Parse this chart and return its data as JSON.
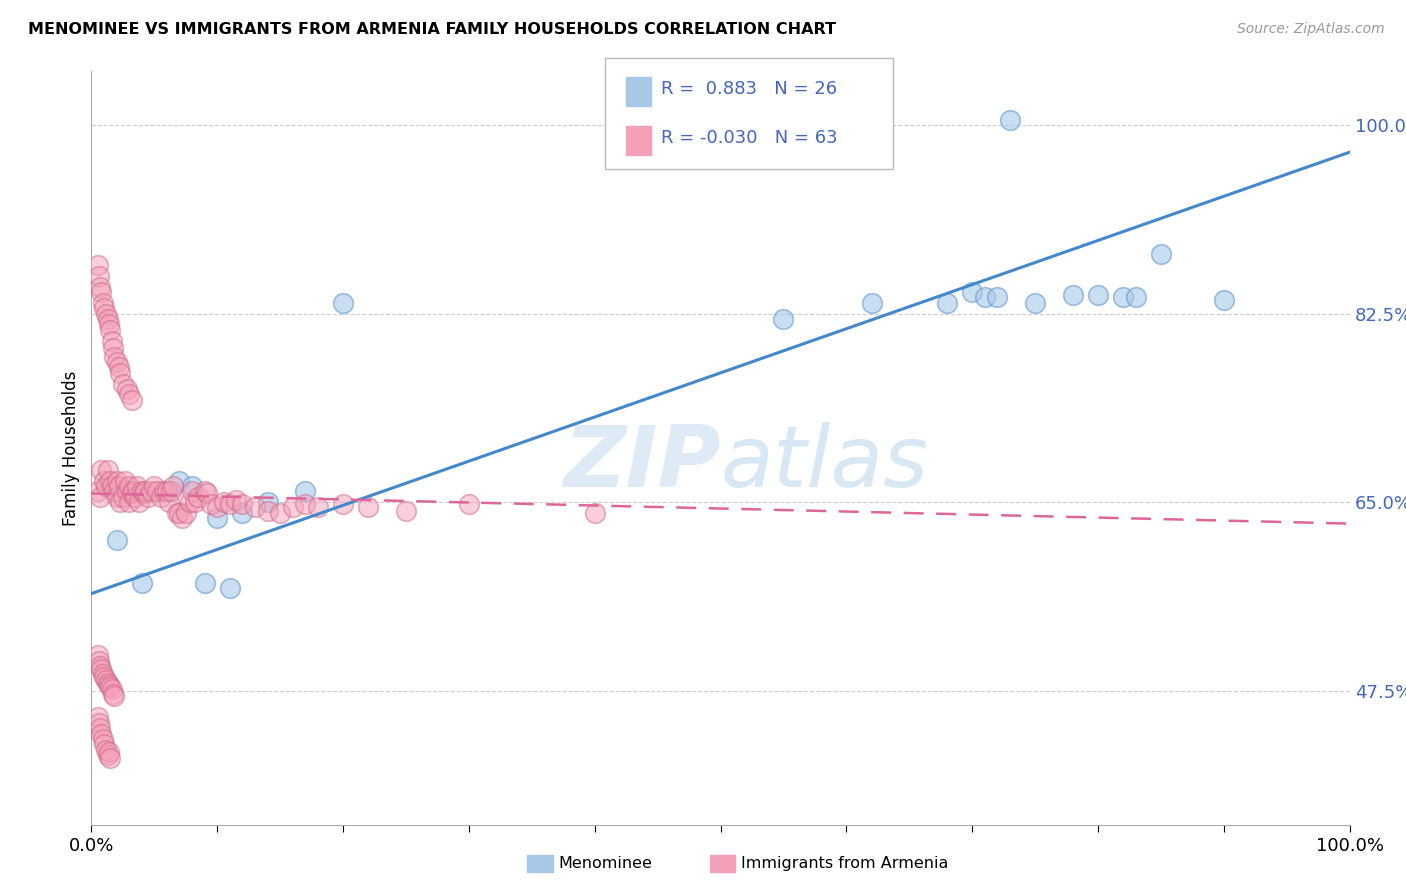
{
  "title": "MENOMINEE VS IMMIGRANTS FROM ARMENIA FAMILY HOUSEHOLDS CORRELATION CHART",
  "source": "Source: ZipAtlas.com",
  "ylabel": "Family Households",
  "xlim": [
    0.0,
    1.0
  ],
  "ylim": [
    0.35,
    1.05
  ],
  "yticks": [
    0.475,
    0.65,
    0.825,
    1.0
  ],
  "ytick_labels": [
    "47.5%",
    "65.0%",
    "82.5%",
    "100.0%"
  ],
  "xticks": [
    0.0,
    0.1,
    0.2,
    0.3,
    0.4,
    0.5,
    0.6,
    0.7,
    0.8,
    0.9,
    1.0
  ],
  "blue_color": "#a8c8e8",
  "blue_edge_color": "#6699cc",
  "pink_color": "#f4a0b8",
  "pink_edge_color": "#cc6688",
  "blue_line_color": "#4488cc",
  "pink_line_color": "#dd6699",
  "legend_text_color": "#4466bb",
  "R_blue": 0.883,
  "N_blue": 26,
  "R_pink": -0.03,
  "N_pink": 63,
  "blue_scatter_x": [
    0.02,
    0.04,
    0.06,
    0.07,
    0.08,
    0.09,
    0.1,
    0.11,
    0.12,
    0.14,
    0.17,
    0.2,
    0.55,
    0.62,
    0.68,
    0.7,
    0.71,
    0.72,
    0.73,
    0.75,
    0.78,
    0.8,
    0.82,
    0.83,
    0.85,
    0.9
  ],
  "blue_scatter_y": [
    0.615,
    0.575,
    0.66,
    0.67,
    0.665,
    0.575,
    0.635,
    0.57,
    0.64,
    0.65,
    0.66,
    0.835,
    0.82,
    0.835,
    0.835,
    0.845,
    0.84,
    0.84,
    1.005,
    0.835,
    0.842,
    0.842,
    0.84,
    0.84,
    0.88,
    0.838
  ],
  "pink_scatter_x": [
    0.005,
    0.007,
    0.008,
    0.01,
    0.012,
    0.013,
    0.015,
    0.016,
    0.018,
    0.02,
    0.02,
    0.022,
    0.023,
    0.025,
    0.027,
    0.028,
    0.03,
    0.03,
    0.032,
    0.033,
    0.035,
    0.036,
    0.038,
    0.04,
    0.042,
    0.043,
    0.045,
    0.047,
    0.05,
    0.052,
    0.055,
    0.058,
    0.06,
    0.062,
    0.063,
    0.065,
    0.068,
    0.07,
    0.072,
    0.075,
    0.078,
    0.08,
    0.082,
    0.085,
    0.09,
    0.092,
    0.095,
    0.1,
    0.105,
    0.11,
    0.115,
    0.12,
    0.13,
    0.14,
    0.15,
    0.16,
    0.17,
    0.18,
    0.2,
    0.22,
    0.25,
    0.3,
    0.4
  ],
  "pink_scatter_y": [
    0.66,
    0.655,
    0.68,
    0.67,
    0.665,
    0.68,
    0.67,
    0.665,
    0.66,
    0.67,
    0.655,
    0.665,
    0.65,
    0.655,
    0.67,
    0.66,
    0.665,
    0.65,
    0.658,
    0.66,
    0.655,
    0.665,
    0.65,
    0.66,
    0.658,
    0.66,
    0.655,
    0.66,
    0.665,
    0.66,
    0.655,
    0.66,
    0.66,
    0.65,
    0.66,
    0.665,
    0.64,
    0.64,
    0.635,
    0.64,
    0.65,
    0.66,
    0.65,
    0.655,
    0.66,
    0.658,
    0.648,
    0.645,
    0.65,
    0.648,
    0.652,
    0.648,
    0.645,
    0.642,
    0.64,
    0.645,
    0.648,
    0.645,
    0.648,
    0.645,
    0.642,
    0.648,
    0.64
  ],
  "pink_extra_x": [
    0.005,
    0.006,
    0.007,
    0.008,
    0.009,
    0.01,
    0.012,
    0.013,
    0.014,
    0.015,
    0.016,
    0.017,
    0.018,
    0.02,
    0.022,
    0.023,
    0.025,
    0.028,
    0.03,
    0.032,
    0.005,
    0.006,
    0.007,
    0.008,
    0.009,
    0.01,
    0.012,
    0.013,
    0.014,
    0.015,
    0.005,
    0.006,
    0.007,
    0.008,
    0.009,
    0.01,
    0.012,
    0.013,
    0.014,
    0.015,
    0.016,
    0.017,
    0.018
  ],
  "pink_extra_y": [
    0.87,
    0.86,
    0.85,
    0.845,
    0.835,
    0.83,
    0.825,
    0.82,
    0.815,
    0.81,
    0.8,
    0.793,
    0.785,
    0.78,
    0.775,
    0.77,
    0.76,
    0.755,
    0.75,
    0.745,
    0.45,
    0.445,
    0.44,
    0.435,
    0.43,
    0.425,
    0.42,
    0.415,
    0.418,
    0.412,
    0.508,
    0.502,
    0.498,
    0.495,
    0.49,
    0.488,
    0.485,
    0.482,
    0.48,
    0.478,
    0.476,
    0.472,
    0.47
  ]
}
